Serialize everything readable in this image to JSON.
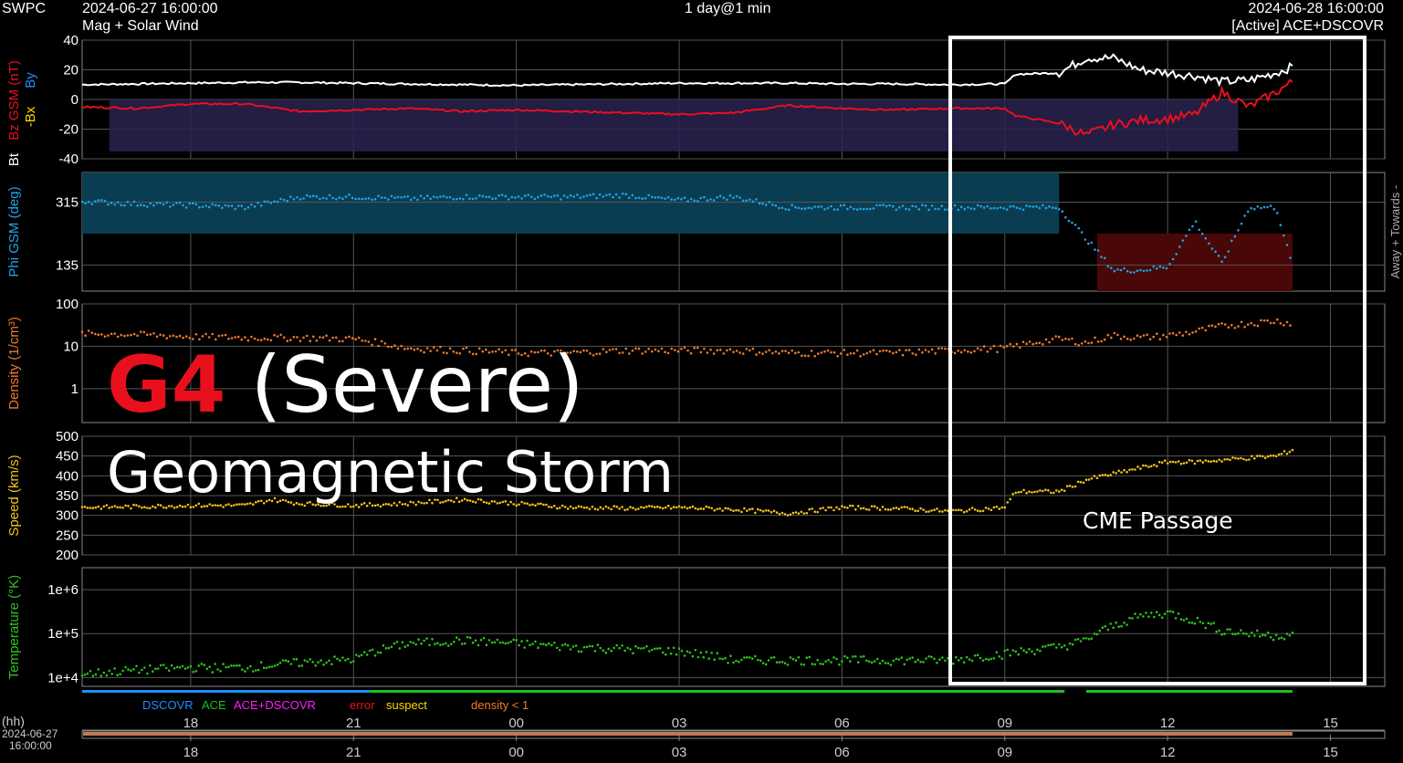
{
  "header": {
    "source": "SWPC",
    "start_time": "2024-06-27 16:00:00",
    "product": "Mag + Solar Wind",
    "span": "1 day@1 min",
    "end_time": "2024-06-28 16:00:00",
    "spacecraft": "[Active] ACE+DSCOVR"
  },
  "overlay": {
    "level": "G4",
    "severity": "(Severe)",
    "subtitle": "Geomagnetic Storm",
    "box_label": "CME Passage",
    "level_color": "#e8101c"
  },
  "footer": {
    "legend": {
      "dscovr": "DSCOVR",
      "ace": "ACE",
      "ace_dscovr": "ACE+DSCOVR",
      "error": "error",
      "suspect": "suspect",
      "density": "density < 1"
    },
    "hh_label": "(hh)",
    "start_date": "2024-06-27",
    "start_clock": "16:00:00"
  },
  "colors": {
    "bt": "#ffffff",
    "bz": "#e8101c",
    "by": "#1e90ff",
    "bx": "#ffd700",
    "phi": "#1fa3e6",
    "density": "#f07a2a",
    "speed": "#f2c21a",
    "temperature": "#2ec21f",
    "dscovr": "#1e90ff",
    "ace": "#1fbf1f",
    "ace_dscovr": "#ff1fff",
    "error": "#e8101c",
    "suspect": "#ffd700",
    "density_lt1": "#f07a2a"
  },
  "chart_data": [
    {
      "type": "line",
      "ylabel_parts": [
        "Bt",
        "Bz GSM (nT)",
        "-Bx",
        "By"
      ],
      "ylim": [
        -40,
        40
      ],
      "yticks": [
        "40",
        "20",
        "0",
        "-20",
        "-40"
      ],
      "x_hours_ticks": [
        "18",
        "21",
        "00",
        "03",
        "06",
        "09",
        "12",
        "15"
      ],
      "series": [
        {
          "name": "Bt",
          "x": [
            16,
            17,
            18,
            19,
            20,
            21,
            22,
            23,
            0,
            1,
            2,
            3,
            4,
            5,
            6,
            7,
            8,
            9,
            9.2,
            10,
            10.5,
            11,
            11.5,
            12,
            12.5,
            13,
            13.5,
            14,
            14.3
          ],
          "values": [
            10,
            10.5,
            11,
            11.5,
            11.5,
            11,
            10.5,
            10,
            9.5,
            10,
            10.5,
            11,
            11,
            11,
            10.5,
            10.5,
            10,
            10.5,
            17,
            18,
            28,
            28,
            20,
            18,
            16,
            12,
            13,
            18,
            22
          ]
        },
        {
          "name": "Bz GSM",
          "x": [
            16,
            17,
            18,
            19,
            20,
            21,
            22,
            23,
            0,
            1,
            2,
            3,
            4,
            5,
            6,
            7,
            8,
            9,
            9.2,
            10,
            10.5,
            11,
            11.5,
            12,
            12.5,
            13,
            13.5,
            14,
            14.3
          ],
          "values": [
            -5,
            -6,
            -3,
            -3,
            -8,
            -7,
            -6,
            -8,
            -7,
            -8,
            -9,
            -10,
            -9,
            -4,
            -6,
            -7,
            -6,
            -6,
            -11,
            -16,
            -24,
            -17,
            -14,
            -13,
            -10,
            5,
            -5,
            5,
            12
          ]
        }
      ]
    },
    {
      "type": "scatter",
      "ylabel": "Phi GSM (deg)",
      "yticks": [
        "315",
        "135"
      ],
      "right_label": "Away + Towards -",
      "series": [
        {
          "name": "Phi GSM",
          "x": [
            16,
            17,
            18,
            19,
            20,
            21,
            22,
            23,
            0,
            1,
            2,
            3,
            4,
            5,
            6,
            7,
            8,
            9,
            10,
            11,
            11.5,
            12,
            12.5,
            13,
            13.5,
            14,
            14.3
          ],
          "values": [
            318,
            310,
            306,
            300,
            330,
            330,
            325,
            330,
            330,
            330,
            335,
            320,
            330,
            300,
            300,
            300,
            300,
            300,
            300,
            120,
            120,
            130,
            260,
            140,
            300,
            300,
            130
          ]
        }
      ]
    },
    {
      "type": "scatter",
      "ylabel": "Density (1/cm³)",
      "yscale": "log",
      "yticks": [
        "100",
        "10",
        "1"
      ],
      "series": [
        {
          "name": "Density",
          "x": [
            16,
            17,
            18,
            19,
            20,
            21,
            22,
            23,
            0,
            1,
            2,
            3,
            4,
            5,
            6,
            7,
            8,
            9,
            10,
            10.5,
            11,
            11.5,
            12,
            12.5,
            13,
            13.5,
            14,
            14.3
          ],
          "values": [
            20,
            19,
            17,
            16,
            16,
            15,
            9,
            8,
            7,
            7,
            8,
            8,
            8,
            7,
            7,
            7,
            8,
            9,
            15,
            12,
            18,
            16,
            18,
            22,
            30,
            35,
            40,
            35
          ]
        }
      ]
    },
    {
      "type": "scatter",
      "ylabel": "Speed (km/s)",
      "ylim": [
        200,
        500
      ],
      "yticks": [
        "500",
        "450",
        "400",
        "350",
        "300",
        "250",
        "200"
      ],
      "series": [
        {
          "name": "Speed",
          "x": [
            16,
            17,
            18,
            19,
            19.5,
            20,
            21,
            22,
            23,
            0,
            1,
            2,
            3,
            4,
            5,
            6,
            7,
            8,
            9,
            9.2,
            10,
            10.5,
            11,
            11.5,
            12,
            12.5,
            13,
            13.5,
            14,
            14.3
          ],
          "values": [
            320,
            322,
            325,
            325,
            340,
            330,
            325,
            330,
            340,
            330,
            320,
            318,
            320,
            315,
            305,
            320,
            318,
            310,
            320,
            360,
            360,
            390,
            405,
            420,
            435,
            435,
            440,
            445,
            450,
            465
          ]
        }
      ]
    },
    {
      "type": "scatter",
      "ylabel": "Temperature (°K)",
      "yscale": "log",
      "yticks": [
        "1e+6",
        "1e+5",
        "1e+4"
      ],
      "series": [
        {
          "name": "Temperature",
          "x": [
            16,
            17,
            18,
            19,
            20,
            21,
            22,
            23,
            0,
            1,
            2,
            3,
            4,
            5,
            6,
            7,
            8,
            9,
            10,
            10.5,
            11,
            11.5,
            12,
            12.5,
            13,
            13.5,
            14,
            14.3
          ],
          "values": [
            12000,
            15000,
            17000,
            17000,
            22000,
            26000,
            60000,
            70000,
            60000,
            50000,
            45000,
            40000,
            25000,
            25000,
            25000,
            25000,
            25000,
            35000,
            50000,
            70000,
            150000,
            250000,
            300000,
            200000,
            120000,
            100000,
            90000,
            100000
          ]
        }
      ]
    }
  ]
}
